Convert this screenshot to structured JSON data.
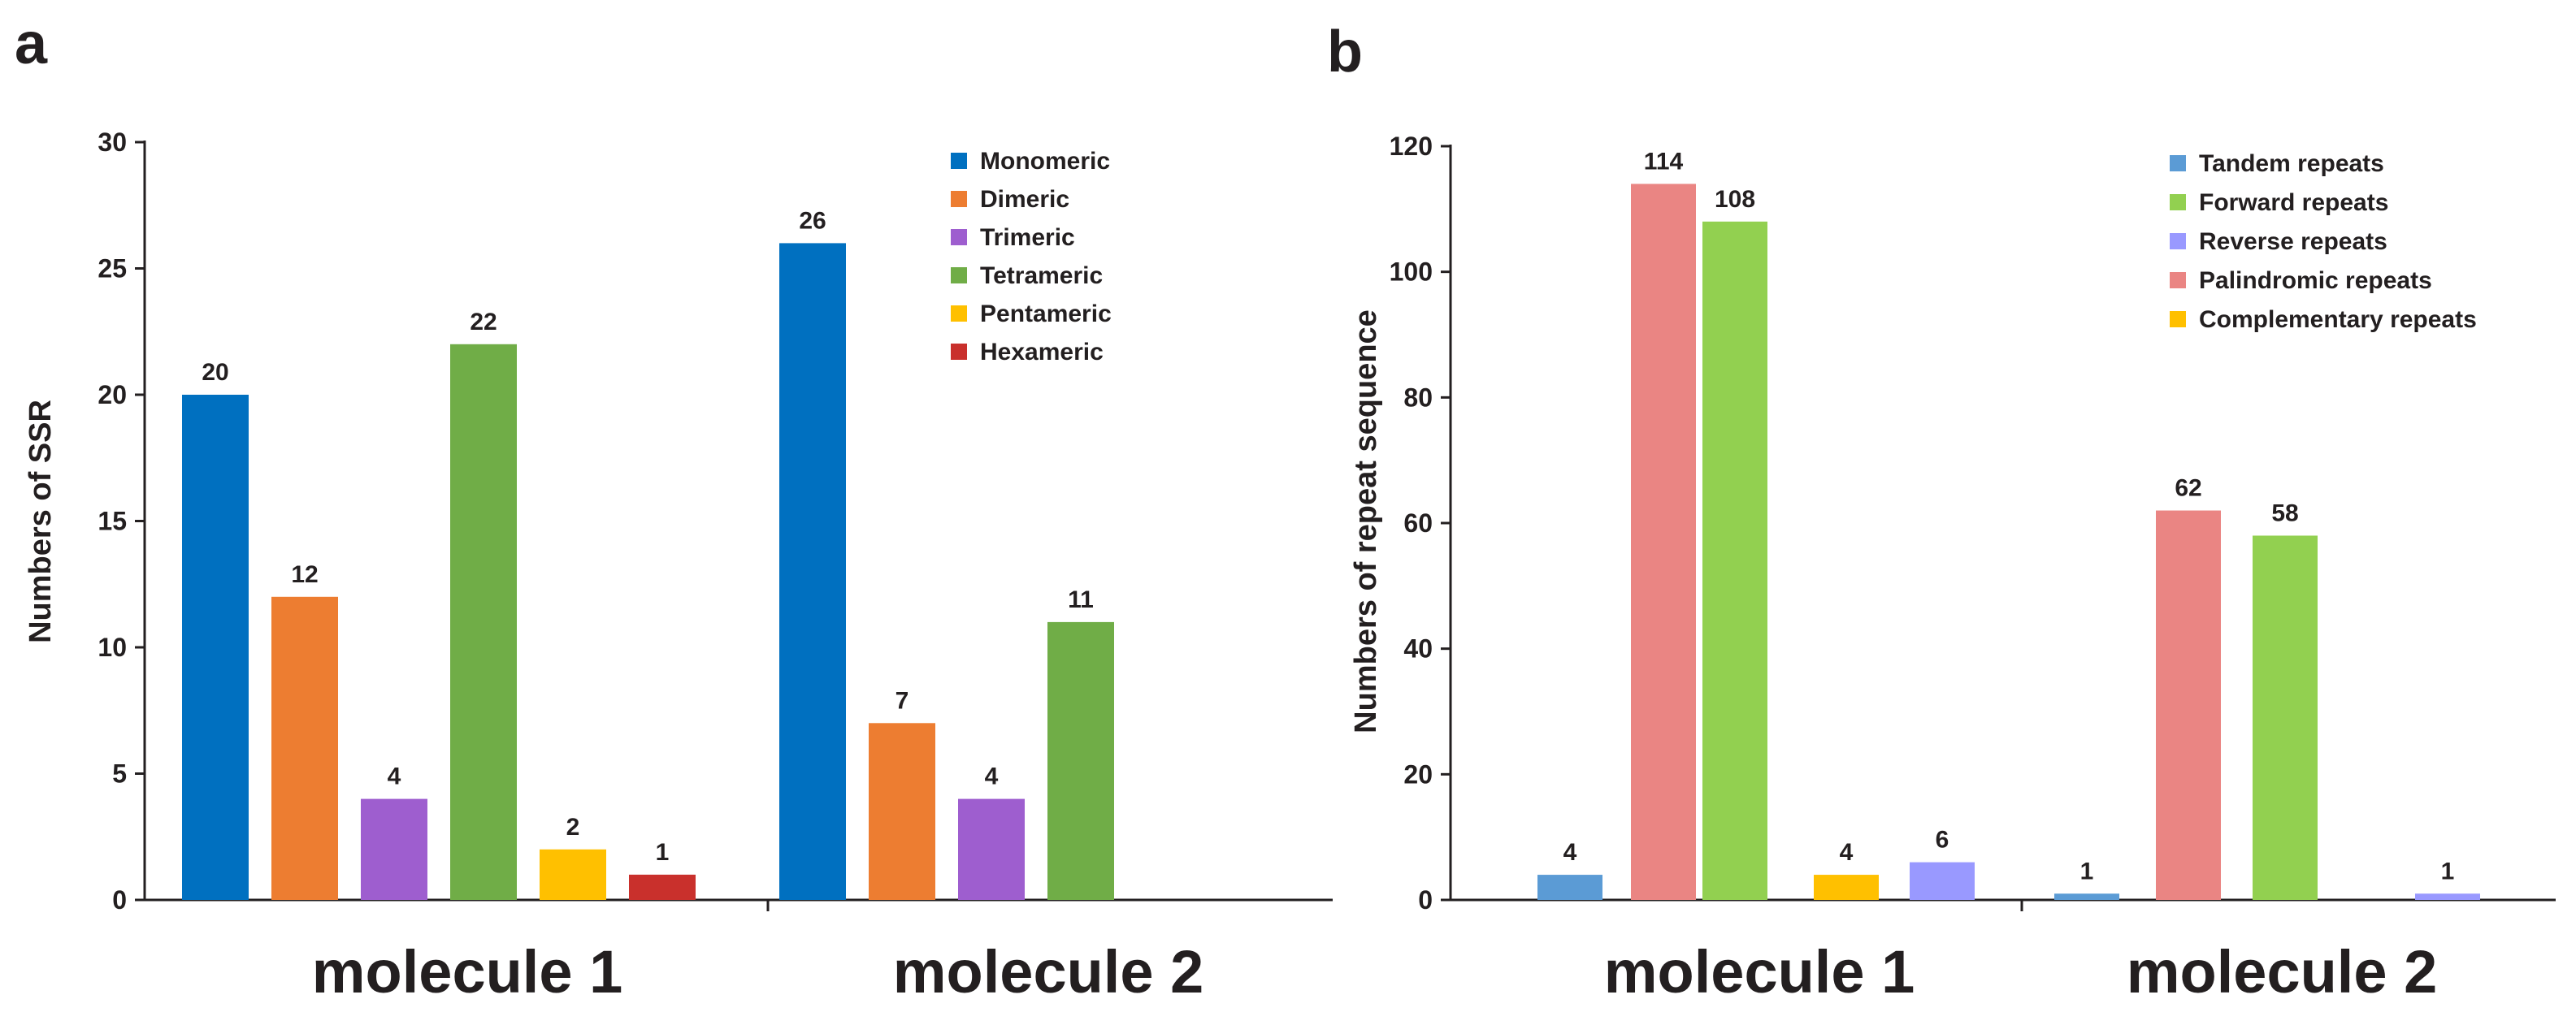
{
  "chart_data": [
    {
      "type": "bar",
      "panel_label": "a",
      "ylabel": "Numbers of SSR",
      "xlabel": "",
      "ylim": [
        0,
        30
      ],
      "yticks": [
        0,
        5,
        10,
        15,
        20,
        25,
        30
      ],
      "categories": [
        "molecule 1",
        "molecule 2"
      ],
      "legend_position": "top-right",
      "series": [
        {
          "name": "Monomeric",
          "color": "#0070c0",
          "values": [
            20,
            26
          ]
        },
        {
          "name": "Dimeric",
          "color": "#ed7d31",
          "values": [
            12,
            7
          ]
        },
        {
          "name": "Trimeric",
          "color": "#9e5ecf",
          "values": [
            4,
            4
          ]
        },
        {
          "name": "Tetrameric",
          "color": "#70ad47",
          "values": [
            22,
            11
          ]
        },
        {
          "name": "Pentameric",
          "color": "#ffc000",
          "values": [
            2,
            null
          ]
        },
        {
          "name": "Hexameric",
          "color": "#c9302c",
          "values": [
            1,
            null
          ]
        }
      ]
    },
    {
      "type": "bar",
      "panel_label": "b",
      "ylabel": "Numbers of repeat sequence",
      "xlabel": "",
      "ylim": [
        0,
        120
      ],
      "yticks": [
        0,
        20,
        40,
        60,
        80,
        100,
        120
      ],
      "categories": [
        "molecule 1",
        "molecule 2"
      ],
      "legend_position": "top-right",
      "series": [
        {
          "name": "Tandem repeats",
          "color": "#5b9bd5",
          "values": [
            4,
            1
          ]
        },
        {
          "name": "Palindromic repeats",
          "color": "#ea8583",
          "values": [
            114,
            62
          ]
        },
        {
          "name": "Forward repeats",
          "color": "#92d050",
          "values": [
            108,
            58
          ]
        },
        {
          "name": "Complementary repeats",
          "color": "#ffc000",
          "values": [
            4,
            null
          ]
        },
        {
          "name": "Reverse repeats",
          "color": "#9999ff",
          "values": [
            6,
            1
          ]
        }
      ],
      "legend_order": [
        "Tandem repeats",
        "Forward repeats",
        "Reverse repeats",
        "Palindromic repeats",
        "Complementary repeats"
      ]
    }
  ]
}
